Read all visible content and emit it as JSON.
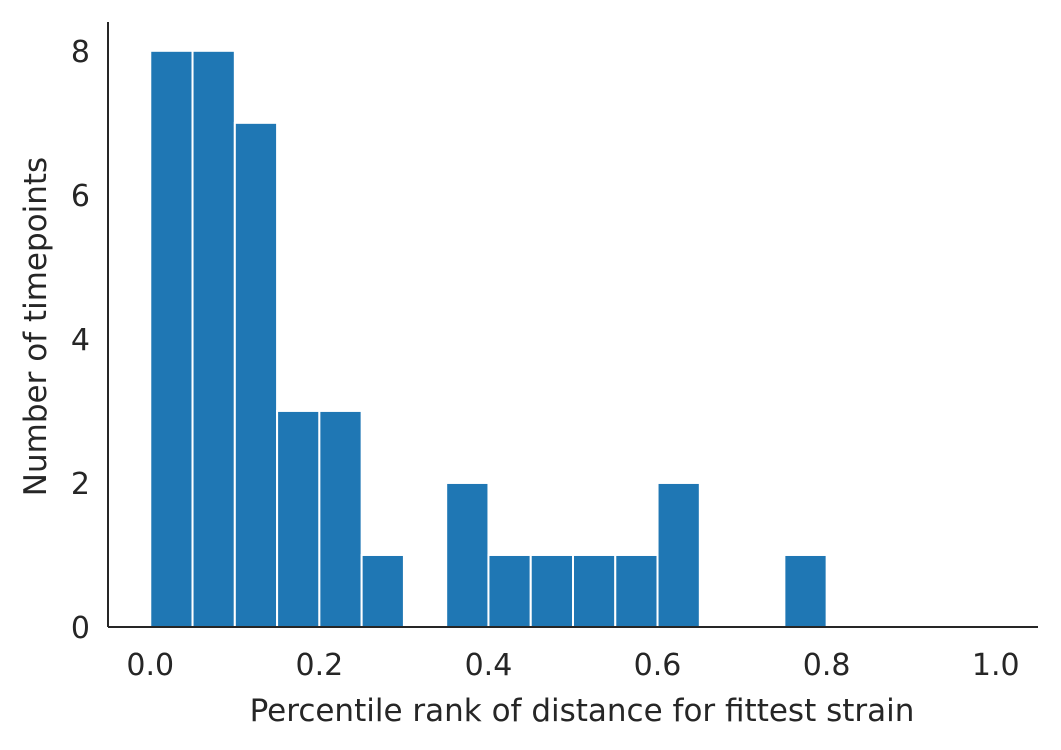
{
  "chart_data": {
    "type": "bar",
    "title": "",
    "xlabel": "Percentile rank of distance for fittest strain",
    "ylabel": "Number of timepoints",
    "bin_edges": [
      0.0,
      0.05,
      0.1,
      0.15,
      0.2,
      0.25,
      0.3,
      0.35,
      0.4,
      0.45,
      0.5,
      0.55,
      0.6,
      0.65,
      0.7,
      0.75,
      0.8,
      0.85,
      0.9,
      0.95,
      1.0
    ],
    "values": [
      8,
      8,
      7,
      3,
      3,
      1,
      0,
      2,
      1,
      1,
      1,
      1,
      2,
      0,
      0,
      1,
      0,
      0,
      0,
      0
    ],
    "xlim": [
      -0.05,
      1.05
    ],
    "ylim": [
      0,
      8.4
    ],
    "xticks": [
      "0.0",
      "0.2",
      "0.4",
      "0.6",
      "0.8",
      "1.0"
    ],
    "yticks": [
      "0",
      "2",
      "4",
      "6",
      "8"
    ],
    "grid": false,
    "bar_color": "#1f77b4",
    "axis_color": "#262626"
  }
}
